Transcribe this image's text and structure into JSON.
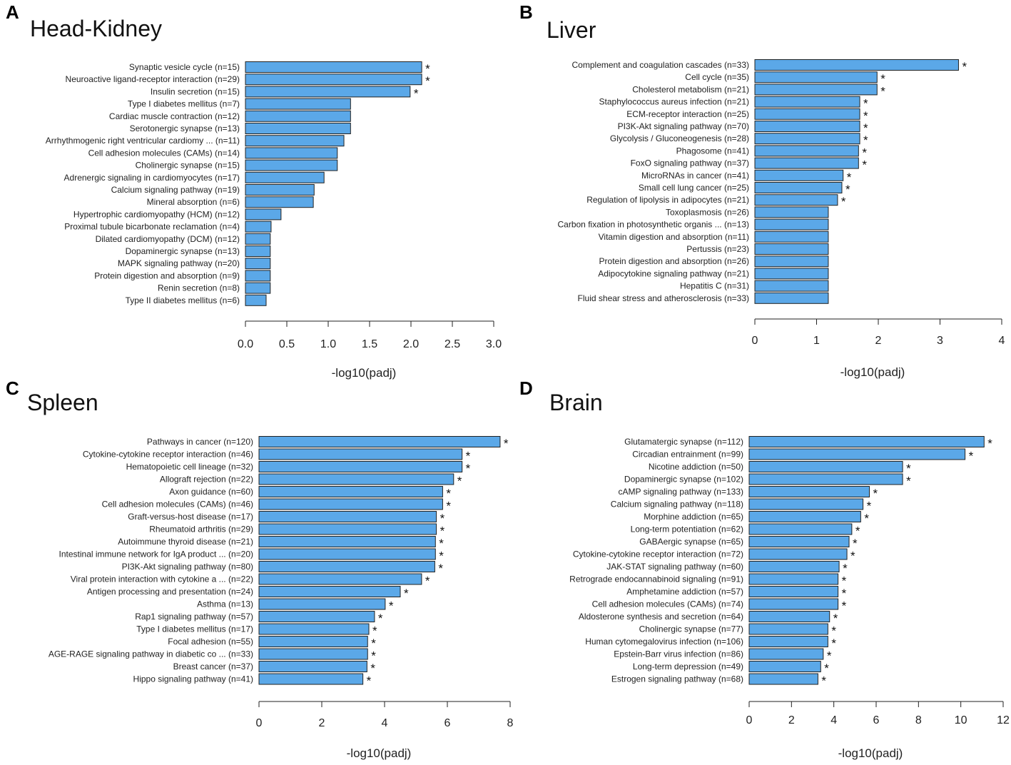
{
  "colors": {
    "bar": "#5BA8E8",
    "bar_stroke": "#222222",
    "axis": "#222222",
    "text": "#222222"
  },
  "chart_data": [
    {
      "type": "bar",
      "orientation": "horizontal",
      "panel": "A",
      "title": "Head-Kidney",
      "xlabel": "-log10(padj)",
      "xlim": [
        0,
        3
      ],
      "xticks": [
        0,
        0.5,
        1,
        1.5,
        2,
        2.5,
        3
      ],
      "xtick_labels": [
        "0.0",
        "0.5",
        "1.0",
        "1.5",
        "2.0",
        "2.5",
        "3.0"
      ],
      "significance_marker": "*",
      "categories": [
        "Synaptic vesicle cycle (n=15)",
        "Neuroactive ligand-receptor interaction (n=29)",
        "Insulin secretion (n=15)",
        "Type I diabetes mellitus (n=7)",
        "Cardiac muscle contraction (n=12)",
        "Serotonergic synapse (n=13)",
        "Arrhythmogenic right ventricular cardiomy ... (n=11)",
        "Cell adhesion molecules (CAMs) (n=14)",
        "Cholinergic synapse (n=15)",
        "Adrenergic signaling in cardiomyocytes (n=17)",
        "Calcium signaling pathway (n=19)",
        "Mineral absorption (n=6)",
        "Hypertrophic cardiomyopathy (HCM) (n=12)",
        "Proximal tubule bicarbonate reclamation (n=4)",
        "Dilated cardiomyopathy (DCM) (n=12)",
        "Dopaminergic synapse (n=13)",
        "MAPK signaling pathway (n=20)",
        "Protein digestion and absorption (n=9)",
        "Renin secretion (n=8)",
        "Type II diabetes mellitus (n=6)"
      ],
      "values": [
        2.13,
        2.13,
        1.99,
        1.27,
        1.27,
        1.27,
        1.19,
        1.11,
        1.11,
        0.95,
        0.83,
        0.82,
        0.43,
        0.31,
        0.3,
        0.3,
        0.3,
        0.3,
        0.3,
        0.25
      ],
      "significant": [
        true,
        true,
        true,
        false,
        false,
        false,
        false,
        false,
        false,
        false,
        false,
        false,
        false,
        false,
        false,
        false,
        false,
        false,
        false,
        false
      ]
    },
    {
      "type": "bar",
      "orientation": "horizontal",
      "panel": "B",
      "title": "Liver",
      "xlabel": "-log10(padj)",
      "xlim": [
        0,
        4
      ],
      "xticks": [
        0,
        1,
        2,
        3,
        4
      ],
      "xtick_labels": [
        "0",
        "1",
        "2",
        "3",
        "4"
      ],
      "significance_marker": "*",
      "categories": [
        "Complement and coagulation cascades (n=33)",
        "Cell cycle (n=35)",
        "Cholesterol metabolism (n=21)",
        "Staphylococcus aureus infection (n=21)",
        "ECM-receptor interaction (n=25)",
        "PI3K-Akt signaling pathway (n=70)",
        "Glycolysis / Gluconeogenesis (n=28)",
        "Phagosome (n=41)",
        "FoxO signaling pathway (n=37)",
        "MicroRNAs in cancer (n=41)",
        "Small cell lung cancer (n=25)",
        "Regulation of lipolysis in adipocytes (n=21)",
        "Toxoplasmosis (n=26)",
        "Carbon fixation in photosynthetic organis ... (n=13)",
        "Vitamin digestion and absorption (n=11)",
        "Pertussis (n=23)",
        "Protein digestion and absorption (n=26)",
        "Adipocytokine signaling pathway (n=21)",
        "Hepatitis C (n=31)",
        "Fluid shear stress and atherosclerosis (n=33)"
      ],
      "values": [
        3.3,
        1.98,
        1.98,
        1.7,
        1.7,
        1.7,
        1.7,
        1.68,
        1.68,
        1.43,
        1.41,
        1.34,
        1.19,
        1.19,
        1.19,
        1.19,
        1.19,
        1.19,
        1.19,
        1.19
      ],
      "significant": [
        true,
        true,
        true,
        true,
        true,
        true,
        true,
        true,
        true,
        true,
        true,
        true,
        false,
        false,
        false,
        false,
        false,
        false,
        false,
        false
      ]
    },
    {
      "type": "bar",
      "orientation": "horizontal",
      "panel": "C",
      "title": "Spleen",
      "xlabel": "-log10(padj)",
      "xlim": [
        0,
        8
      ],
      "xticks": [
        0,
        2,
        4,
        6,
        8
      ],
      "xtick_labels": [
        "0",
        "2",
        "4",
        "6",
        "8"
      ],
      "significance_marker": "*",
      "categories": [
        "Pathways in cancer (n=120)",
        "Cytokine-cytokine receptor interaction (n=46)",
        "Hematopoietic cell lineage (n=32)",
        "Allograft rejection (n=22)",
        "Axon guidance (n=60)",
        "Cell adhesion molecules (CAMs) (n=46)",
        "Graft-versus-host disease (n=17)",
        "Rheumatoid arthritis (n=29)",
        "Autoimmune thyroid disease (n=21)",
        "Intestinal immune network for IgA product ... (n=20)",
        "PI3K-Akt signaling pathway (n=80)",
        "Viral protein interaction with cytokine a ... (n=22)",
        "Antigen processing and presentation (n=24)",
        "Asthma (n=13)",
        "Rap1 signaling pathway (n=57)",
        "Type I diabetes mellitus (n=17)",
        "Focal adhesion (n=55)",
        "AGE-RAGE signaling pathway in diabetic co ... (n=33)",
        "Breast cancer (n=37)",
        "Hippo signaling pathway (n=41)"
      ],
      "values": [
        7.68,
        6.47,
        6.47,
        6.2,
        5.85,
        5.85,
        5.65,
        5.65,
        5.62,
        5.62,
        5.6,
        5.18,
        4.5,
        4.02,
        3.68,
        3.5,
        3.46,
        3.46,
        3.44,
        3.31
      ],
      "significant": [
        true,
        true,
        true,
        true,
        true,
        true,
        true,
        true,
        true,
        true,
        true,
        true,
        true,
        true,
        true,
        true,
        true,
        true,
        true,
        true
      ]
    },
    {
      "type": "bar",
      "orientation": "horizontal",
      "panel": "D",
      "title": "Brain",
      "xlabel": "-log10(padj)",
      "xlim": [
        0,
        12
      ],
      "xticks": [
        0,
        2,
        4,
        6,
        8,
        10,
        12
      ],
      "xtick_labels": [
        "0",
        "2",
        "4",
        "6",
        "8",
        "10",
        "12"
      ],
      "significance_marker": "*",
      "categories": [
        "Glutamatergic synapse (n=112)",
        "Circadian entrainment (n=99)",
        "Nicotine addiction (n=50)",
        "Dopaminergic synapse (n=102)",
        "cAMP signaling pathway (n=133)",
        "Calcium signaling pathway (n=118)",
        "Morphine addiction (n=65)",
        "Long-term potentiation (n=62)",
        "GABAergic synapse (n=65)",
        "Cytokine-cytokine receptor interaction (n=72)",
        "JAK-STAT signaling pathway (n=60)",
        "Retrograde endocannabinoid signaling (n=91)",
        "Amphetamine addiction (n=57)",
        "Cell adhesion molecules (CAMs) (n=74)",
        "Aldosterone synthesis and secretion (n=64)",
        "Cholinergic synapse (n=77)",
        "Human cytomegalovirus infection (n=106)",
        "Epstein-Barr virus infection (n=86)",
        "Long-term depression (n=49)",
        "Estrogen signaling pathway (n=68)"
      ],
      "values": [
        11.1,
        10.2,
        7.25,
        7.25,
        5.68,
        5.38,
        5.27,
        4.85,
        4.72,
        4.62,
        4.25,
        4.2,
        4.2,
        4.2,
        3.8,
        3.72,
        3.72,
        3.5,
        3.38,
        3.25
      ],
      "significant": [
        true,
        true,
        true,
        true,
        true,
        true,
        true,
        true,
        true,
        true,
        true,
        true,
        true,
        true,
        true,
        true,
        true,
        true,
        true,
        true
      ]
    }
  ]
}
